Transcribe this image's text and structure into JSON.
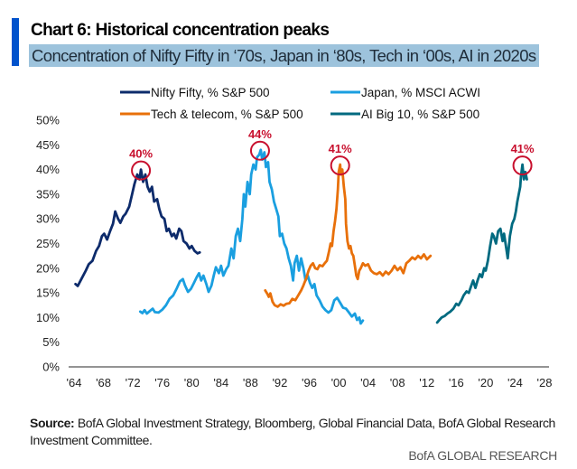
{
  "header": {
    "title": "Chart 6: Historical concentration peaks",
    "subtitle": "Concentration of Nifty Fifty in ‘70s, Japan in ‘80s, Tech in ‘00s, AI in 2020s"
  },
  "footer": {
    "source_label": "Source:",
    "source_text": " BofA Global Investment Strategy, Bloomberg, Global Financial Data, BofA Global Research Investment Committee.",
    "brand": "BofA GLOBAL RESEARCH"
  },
  "colors": {
    "accent_bar": "#0052cc",
    "subtitle_highlight": "#9dc3dc",
    "peak_marker": "#c8102e"
  },
  "chart_data": {
    "type": "line",
    "title": "Chart 6: Historical concentration peaks",
    "subtitle": "Concentration of Nifty Fifty in ‘70s, Japan in ‘80s, Tech in ‘00s, AI in 2020s",
    "xlabel": "",
    "ylabel": "",
    "xlim": [
      1963.5,
      2028.5
    ],
    "ylim": [
      0,
      50
    ],
    "grid": false,
    "legend_position": "top",
    "x_ticks": [
      1964,
      1968,
      1972,
      1976,
      1980,
      1984,
      1988,
      1992,
      1996,
      2000,
      2004,
      2008,
      2012,
      2016,
      2020,
      2024,
      2028
    ],
    "x_tick_labels": [
      "'64",
      "'68",
      "'72",
      "'76",
      "'80",
      "'84",
      "'88",
      "'92",
      "'96",
      "'00",
      "'04",
      "'08",
      "'12",
      "'16",
      "'20",
      "'24",
      "'28"
    ],
    "y_ticks": [
      0,
      5,
      10,
      15,
      20,
      25,
      30,
      35,
      40,
      45,
      50
    ],
    "y_tick_labels": [
      "0%",
      "5%",
      "10%",
      "15%",
      "20%",
      "25%",
      "30%",
      "35%",
      "40%",
      "45%",
      "50%"
    ],
    "series": [
      {
        "name": "Nifty Fifty, % S&P 500",
        "color": "#0d2b6b",
        "points": [
          [
            1964.2,
            16.8
          ],
          [
            1964.5,
            16.4
          ],
          [
            1965.0,
            17.8
          ],
          [
            1965.6,
            19.5
          ],
          [
            1966.0,
            20.8
          ],
          [
            1966.5,
            21.5
          ],
          [
            1967.0,
            23.5
          ],
          [
            1967.4,
            24.5
          ],
          [
            1967.8,
            26.5
          ],
          [
            1968.1,
            27.0
          ],
          [
            1968.5,
            25.8
          ],
          [
            1968.9,
            27.5
          ],
          [
            1969.3,
            29.0
          ],
          [
            1969.6,
            31.5
          ],
          [
            1970.0,
            30.0
          ],
          [
            1970.3,
            29.2
          ],
          [
            1970.7,
            30.5
          ],
          [
            1971.0,
            31.0
          ],
          [
            1971.5,
            32.5
          ],
          [
            1971.9,
            35.0
          ],
          [
            1972.2,
            37.0
          ],
          [
            1972.6,
            39.0
          ],
          [
            1972.9,
            38.0
          ],
          [
            1973.1,
            40.0
          ],
          [
            1973.4,
            37.5
          ],
          [
            1973.7,
            39.0
          ],
          [
            1974.0,
            36.5
          ],
          [
            1974.3,
            35.5
          ],
          [
            1974.6,
            36.5
          ],
          [
            1974.9,
            33.5
          ],
          [
            1975.3,
            34.0
          ],
          [
            1975.6,
            32.0
          ],
          [
            1975.9,
            30.5
          ],
          [
            1976.3,
            30.0
          ],
          [
            1976.6,
            27.5
          ],
          [
            1976.9,
            28.0
          ],
          [
            1977.3,
            26.5
          ],
          [
            1977.6,
            27.0
          ],
          [
            1977.9,
            26.0
          ],
          [
            1978.3,
            28.0
          ],
          [
            1978.6,
            27.5
          ],
          [
            1978.9,
            25.5
          ],
          [
            1979.3,
            25.0
          ],
          [
            1979.7,
            24.0
          ],
          [
            1980.0,
            24.5
          ],
          [
            1980.4,
            23.5
          ],
          [
            1980.8,
            23.0
          ],
          [
            1981.1,
            23.2
          ]
        ]
      },
      {
        "name": "Japan, % MSCI ACWI",
        "color": "#1a9fe0",
        "points": [
          [
            1973.0,
            11.2
          ],
          [
            1973.3,
            10.9
          ],
          [
            1973.6,
            11.5
          ],
          [
            1973.9,
            10.8
          ],
          [
            1974.3,
            11.3
          ],
          [
            1974.7,
            11.8
          ],
          [
            1975.0,
            11.1
          ],
          [
            1975.5,
            11.0
          ],
          [
            1976.0,
            11.6
          ],
          [
            1976.5,
            12.5
          ],
          [
            1977.0,
            13.8
          ],
          [
            1977.5,
            14.5
          ],
          [
            1978.0,
            16.0
          ],
          [
            1978.4,
            17.3
          ],
          [
            1978.8,
            17.8
          ],
          [
            1979.1,
            16.5
          ],
          [
            1979.5,
            15.2
          ],
          [
            1979.9,
            15.8
          ],
          [
            1980.3,
            17.0
          ],
          [
            1980.7,
            18.2
          ],
          [
            1981.0,
            19.0
          ],
          [
            1981.3,
            17.5
          ],
          [
            1981.6,
            18.5
          ],
          [
            1982.0,
            16.8
          ],
          [
            1982.3,
            15.2
          ],
          [
            1982.7,
            16.5
          ],
          [
            1983.0,
            18.5
          ],
          [
            1983.3,
            20.2
          ],
          [
            1983.7,
            19.0
          ],
          [
            1984.0,
            20.5
          ],
          [
            1984.3,
            18.5
          ],
          [
            1984.7,
            19.8
          ],
          [
            1985.0,
            20.5
          ],
          [
            1985.4,
            24.0
          ],
          [
            1985.7,
            22.0
          ],
          [
            1986.0,
            26.5
          ],
          [
            1986.3,
            28.0
          ],
          [
            1986.6,
            25.5
          ],
          [
            1986.9,
            30.0
          ],
          [
            1987.1,
            35.0
          ],
          [
            1987.3,
            32.5
          ],
          [
            1987.6,
            37.5
          ],
          [
            1987.9,
            35.0
          ],
          [
            1988.1,
            39.0
          ],
          [
            1988.4,
            41.0
          ],
          [
            1988.7,
            40.0
          ],
          [
            1988.9,
            42.5
          ],
          [
            1989.2,
            43.0
          ],
          [
            1989.4,
            44.0
          ],
          [
            1989.6,
            42.0
          ],
          [
            1989.9,
            43.5
          ],
          [
            1990.1,
            40.5
          ],
          [
            1990.4,
            41.5
          ],
          [
            1990.6,
            37.5
          ],
          [
            1990.9,
            36.0
          ],
          [
            1991.2,
            33.5
          ],
          [
            1991.5,
            32.0
          ],
          [
            1991.8,
            30.5
          ],
          [
            1992.0,
            26.5
          ],
          [
            1992.3,
            27.0
          ],
          [
            1992.6,
            25.0
          ],
          [
            1992.9,
            24.0
          ],
          [
            1993.2,
            22.0
          ],
          [
            1993.5,
            20.5
          ],
          [
            1993.8,
            17.5
          ],
          [
            1994.0,
            21.0
          ],
          [
            1994.3,
            22.5
          ],
          [
            1994.6,
            19.5
          ],
          [
            1994.9,
            22.0
          ],
          [
            1995.2,
            20.0
          ],
          [
            1995.5,
            17.5
          ],
          [
            1995.8,
            18.5
          ],
          [
            1996.1,
            17.0
          ],
          [
            1996.4,
            16.0
          ],
          [
            1996.7,
            16.8
          ],
          [
            1997.0,
            14.5
          ],
          [
            1997.4,
            13.5
          ],
          [
            1997.8,
            12.2
          ],
          [
            1998.2,
            11.5
          ],
          [
            1998.6,
            11.0
          ],
          [
            1999.0,
            11.5
          ],
          [
            1999.4,
            13.5
          ],
          [
            1999.8,
            14.0
          ],
          [
            2000.2,
            13.0
          ],
          [
            2000.6,
            12.0
          ],
          [
            2001.0,
            11.8
          ],
          [
            2001.4,
            11.0
          ],
          [
            2001.8,
            10.2
          ],
          [
            2002.2,
            10.8
          ],
          [
            2002.5,
            9.5
          ],
          [
            2002.8,
            10.0
          ],
          [
            2003.0,
            8.8
          ],
          [
            2003.3,
            9.4
          ]
        ]
      },
      {
        "name": "Tech & telecom, % S&P 500",
        "color": "#e8700a",
        "points": [
          [
            1990.0,
            15.5
          ],
          [
            1990.3,
            14.8
          ],
          [
            1990.5,
            14.2
          ],
          [
            1990.7,
            14.9
          ],
          [
            1991.0,
            13.2
          ],
          [
            1991.3,
            12.5
          ],
          [
            1991.7,
            12.2
          ],
          [
            1992.1,
            12.7
          ],
          [
            1992.5,
            12.4
          ],
          [
            1992.9,
            12.8
          ],
          [
            1993.3,
            12.9
          ],
          [
            1993.7,
            13.8
          ],
          [
            1994.1,
            13.5
          ],
          [
            1994.5,
            14.5
          ],
          [
            1994.9,
            15.5
          ],
          [
            1995.2,
            16.5
          ],
          [
            1995.6,
            18.0
          ],
          [
            1995.9,
            19.5
          ],
          [
            1996.2,
            20.5
          ],
          [
            1996.5,
            21.0
          ],
          [
            1996.8,
            20.0
          ],
          [
            1997.1,
            19.8
          ],
          [
            1997.4,
            20.6
          ],
          [
            1997.8,
            20.4
          ],
          [
            1998.1,
            21.0
          ],
          [
            1998.4,
            21.5
          ],
          [
            1998.7,
            23.5
          ],
          [
            1998.9,
            25.0
          ],
          [
            1999.1,
            24.5
          ],
          [
            1999.3,
            27.5
          ],
          [
            1999.5,
            29.5
          ],
          [
            1999.7,
            32.0
          ],
          [
            1999.9,
            36.0
          ],
          [
            2000.0,
            39.5
          ],
          [
            2000.2,
            41.0
          ],
          [
            2000.3,
            39.0
          ],
          [
            2000.5,
            40.0
          ],
          [
            2000.7,
            36.5
          ],
          [
            2000.9,
            34.0
          ],
          [
            2001.0,
            29.0
          ],
          [
            2001.2,
            25.5
          ],
          [
            2001.4,
            24.0
          ],
          [
            2001.6,
            24.5
          ],
          [
            2001.8,
            23.0
          ],
          [
            2002.0,
            22.5
          ],
          [
            2002.2,
            20.5
          ],
          [
            2002.4,
            18.5
          ],
          [
            2002.6,
            17.8
          ],
          [
            2002.8,
            19.5
          ],
          [
            2003.0,
            20.0
          ],
          [
            2003.3,
            21.0
          ],
          [
            2003.6,
            20.5
          ],
          [
            2004.0,
            20.8
          ],
          [
            2004.4,
            19.5
          ],
          [
            2004.8,
            19.0
          ],
          [
            2005.2,
            18.8
          ],
          [
            2005.6,
            19.2
          ],
          [
            2006.0,
            18.5
          ],
          [
            2006.4,
            19.3
          ],
          [
            2006.8,
            18.8
          ],
          [
            2007.2,
            19.5
          ],
          [
            2007.6,
            20.5
          ],
          [
            2008.0,
            19.6
          ],
          [
            2008.4,
            20.2
          ],
          [
            2008.8,
            19.0
          ],
          [
            2009.2,
            21.0
          ],
          [
            2009.6,
            21.5
          ],
          [
            2010.0,
            22.2
          ],
          [
            2010.4,
            21.8
          ],
          [
            2010.8,
            22.5
          ],
          [
            2011.2,
            22.0
          ],
          [
            2011.6,
            22.8
          ],
          [
            2012.0,
            21.8
          ],
          [
            2012.5,
            22.5
          ]
        ]
      },
      {
        "name": "AI Big 10, % S&P 500",
        "color": "#006a80",
        "points": [
          [
            2013.4,
            9.0
          ],
          [
            2013.7,
            9.5
          ],
          [
            2014.0,
            10.0
          ],
          [
            2014.4,
            10.3
          ],
          [
            2014.8,
            10.8
          ],
          [
            2015.2,
            11.2
          ],
          [
            2015.6,
            11.8
          ],
          [
            2016.0,
            12.8
          ],
          [
            2016.3,
            12.5
          ],
          [
            2016.7,
            13.5
          ],
          [
            2017.0,
            14.5
          ],
          [
            2017.4,
            15.3
          ],
          [
            2017.7,
            15.0
          ],
          [
            2018.0,
            16.3
          ],
          [
            2018.3,
            17.5
          ],
          [
            2018.6,
            16.0
          ],
          [
            2018.9,
            17.5
          ],
          [
            2019.2,
            18.8
          ],
          [
            2019.5,
            18.2
          ],
          [
            2019.8,
            20.0
          ],
          [
            2020.0,
            19.5
          ],
          [
            2020.3,
            21.5
          ],
          [
            2020.6,
            24.5
          ],
          [
            2020.9,
            27.0
          ],
          [
            2021.1,
            26.5
          ],
          [
            2021.4,
            25.0
          ],
          [
            2021.7,
            27.5
          ],
          [
            2022.0,
            28.0
          ],
          [
            2022.3,
            25.5
          ],
          [
            2022.5,
            27.0
          ],
          [
            2022.8,
            24.0
          ],
          [
            2023.0,
            22.0
          ],
          [
            2023.3,
            26.5
          ],
          [
            2023.6,
            29.0
          ],
          [
            2023.9,
            30.0
          ],
          [
            2024.1,
            31.5
          ],
          [
            2024.3,
            33.5
          ],
          [
            2024.5,
            35.0
          ],
          [
            2024.7,
            36.5
          ],
          [
            2024.8,
            38.5
          ],
          [
            2025.0,
            41.0
          ],
          [
            2025.2,
            38.0
          ],
          [
            2025.4,
            39.5
          ],
          [
            2025.6,
            38.0
          ]
        ]
      }
    ],
    "annotations": [
      {
        "label": "40%",
        "series": "Nifty Fifty, % S&P 500",
        "x": 1973.1,
        "y": 40
      },
      {
        "label": "44%",
        "series": "Japan, % MSCI ACWI",
        "x": 1989.3,
        "y": 44
      },
      {
        "label": "41%",
        "series": "Tech & telecom, % S&P 500",
        "x": 2000.2,
        "y": 41
      },
      {
        "label": "41%",
        "series": "AI Big 10, % S&P 500",
        "x": 2025.0,
        "y": 41
      }
    ]
  }
}
